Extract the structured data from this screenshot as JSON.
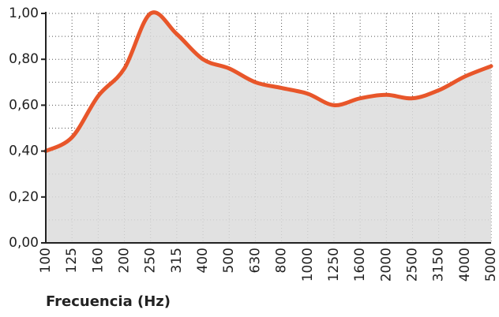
{
  "chart_data": {
    "type": "area",
    "x_label": "Frecuencia (Hz)",
    "categories": [
      "100",
      "125",
      "160",
      "200",
      "250",
      "315",
      "400",
      "500",
      "630",
      "800",
      "1000",
      "1250",
      "1600",
      "2000",
      "2500",
      "3150",
      "4000",
      "5000"
    ],
    "series": [
      {
        "name": null,
        "color": "#e8562a",
        "fill": "#dcdcdc",
        "values": [
          0.4,
          0.46,
          0.64,
          0.76,
          1.0,
          0.91,
          0.8,
          0.76,
          0.7,
          0.675,
          0.65,
          0.6,
          0.63,
          0.645,
          0.63,
          0.665,
          0.725,
          0.77
        ]
      }
    ],
    "ylim": [
      0,
      1
    ],
    "yticks": [
      {
        "value": 0,
        "label": "0,00"
      },
      {
        "value": 0.2,
        "label": "0,20"
      },
      {
        "value": 0.4,
        "label": "0,40"
      },
      {
        "value": 0.6,
        "label": "0,60"
      },
      {
        "value": 0.8,
        "label": "0,80"
      },
      {
        "value": 1,
        "label": "1,00"
      }
    ],
    "grid": true
  }
}
